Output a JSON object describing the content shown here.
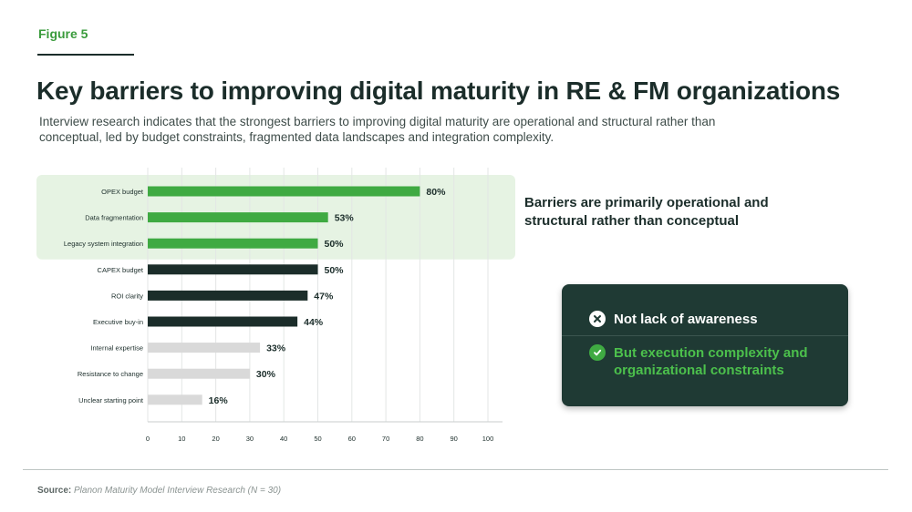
{
  "figure_label": "Figure 5",
  "title": "Key barriers to improving digital maturity in RE & FM organizations",
  "subtitle": "Interview research indicates that the strongest barriers to improving digital maturity are operational and structural rather than conceptual, led by budget constraints, fragmented data landscapes and integration complexity.",
  "callout": "Barriers are primarily operational and structural rather than conceptual",
  "card": {
    "not_label": "Not lack of awareness",
    "but_label": "But execution complexity and organizational constraints",
    "not_icon": "x-circle-icon",
    "but_icon": "check-circle-icon"
  },
  "source": {
    "label": "Source:",
    "text": "Planon Maturity Model Interview Research (N = 30)"
  },
  "colors": {
    "green": "#3faa42",
    "dark": "#1b2d2a",
    "gray": "#d9d9d9",
    "highlight": "#e6f3e3"
  },
  "chart_data": {
    "type": "bar",
    "orientation": "horizontal",
    "categories": [
      "OPEX budget",
      "Data fragmentation",
      "Legacy system integration",
      "CAPEX budget",
      "ROI clarity",
      "Executive buy-in",
      "Internal expertise",
      "Resistance to change",
      "Unclear starting point"
    ],
    "values": [
      80,
      53,
      50,
      50,
      47,
      44,
      33,
      30,
      16
    ],
    "value_labels": [
      "80%",
      "53%",
      "50%",
      "50%",
      "47%",
      "44%",
      "33%",
      "30%",
      "16%"
    ],
    "bar_groups": [
      "green",
      "green",
      "green",
      "dark",
      "dark",
      "dark",
      "gray",
      "gray",
      "gray"
    ],
    "highlighted_categories": [
      "OPEX budget",
      "Data fragmentation",
      "Legacy system integration"
    ],
    "x_ticks": [
      0,
      10,
      20,
      30,
      40,
      50,
      60,
      70,
      80,
      90,
      100
    ],
    "xlim": [
      0,
      100
    ],
    "grid": true,
    "title": "",
    "xlabel": "",
    "ylabel": ""
  }
}
